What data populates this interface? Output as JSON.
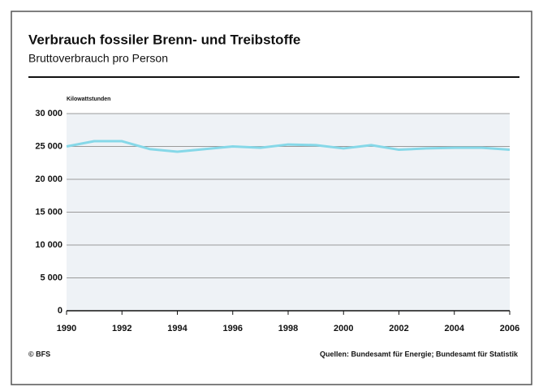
{
  "chart_data": {
    "type": "line",
    "title": "Verbrauch fossiler Brenn- und Treibstoffe",
    "subtitle": "Bruttoverbrauch pro Person",
    "y_axis_label": "Kilowattstunden",
    "x": [
      1990,
      1991,
      1992,
      1993,
      1994,
      1995,
      1996,
      1997,
      1998,
      1999,
      2000,
      2001,
      2002,
      2003,
      2004,
      2005,
      2006
    ],
    "series": [
      {
        "name": "Bruttoverbrauch pro Person",
        "color": "#86d8e8",
        "values": [
          25000,
          25800,
          25800,
          24600,
          24200,
          24600,
          25000,
          24800,
          25300,
          25200,
          24700,
          25200,
          24500,
          24700,
          24800,
          24800,
          24500
        ]
      }
    ],
    "xlim": [
      1990,
      2006
    ],
    "xticks": [
      1990,
      1992,
      1994,
      1996,
      1998,
      2000,
      2002,
      2004,
      2006
    ],
    "ylim": [
      0,
      30000
    ],
    "yticks": [
      0,
      {
        "value": 5000,
        "label": "5 000"
      },
      {
        "value": 10000,
        "label": "10 000"
      },
      {
        "value": 15000,
        "label": "15 000"
      },
      {
        "value": 20000,
        "label": "20 000"
      },
      {
        "value": 25000,
        "label": "25 000"
      },
      {
        "value": 30000,
        "label": "30 000"
      }
    ],
    "grid": true,
    "copyright": "© BFS",
    "source": "Quellen: Bundesamt für Energie; Bundesamt für Statistik"
  }
}
